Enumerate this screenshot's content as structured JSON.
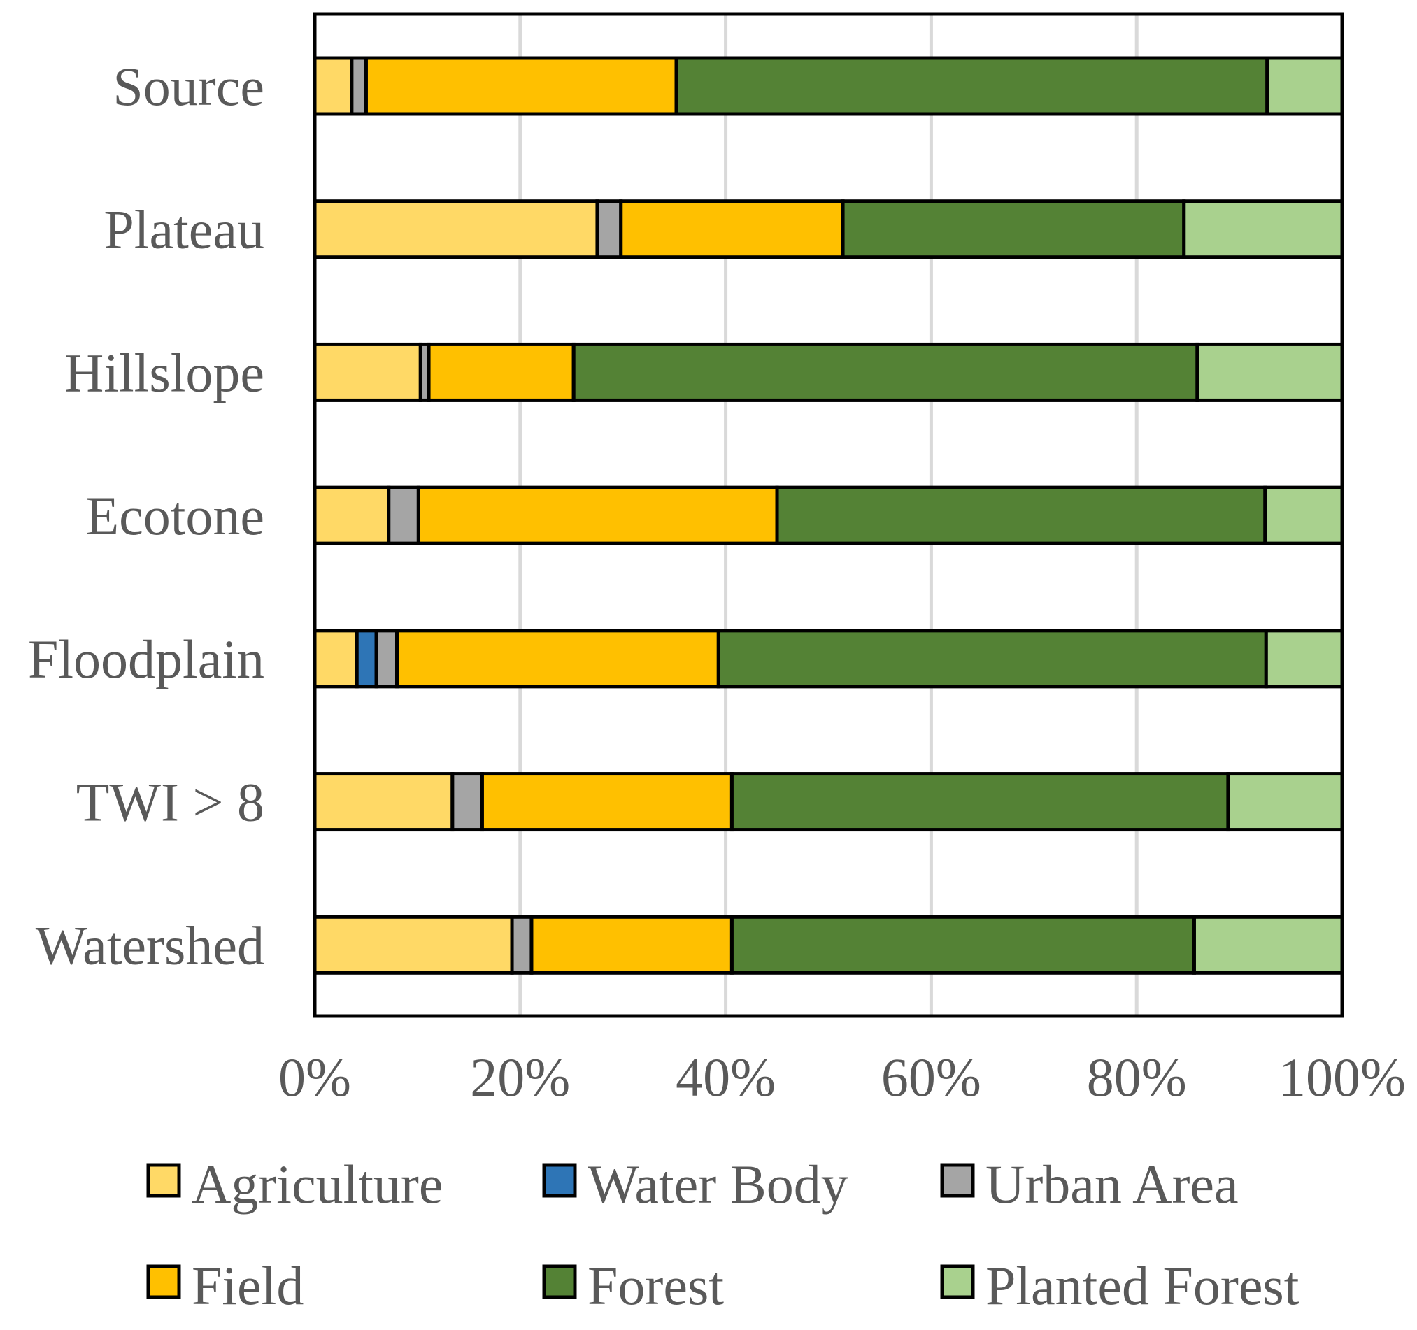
{
  "chart_data": {
    "type": "bar",
    "orientation": "horizontal",
    "stacked": "percent",
    "categories": [
      "Source",
      "Plateau",
      "Hillslope",
      "Ecotone",
      "Floodplain",
      "TWI > 8",
      "Watershed"
    ],
    "series": [
      {
        "name": "Agriculture",
        "color": "#FFD966",
        "values": [
          3.6,
          27.5,
          10.3,
          7.2,
          4.1,
          13.4,
          19.2
        ]
      },
      {
        "name": "Water Body",
        "color": "#2E75B6",
        "values": [
          0.0,
          0.0,
          0.0,
          0.0,
          1.9,
          0.0,
          0.0
        ]
      },
      {
        "name": "Urban Area",
        "color": "#A5A5A5",
        "values": [
          1.4,
          2.3,
          0.8,
          2.9,
          2.0,
          2.9,
          1.9
        ]
      },
      {
        "name": "Field",
        "color": "#FFC000",
        "values": [
          30.2,
          21.6,
          14.1,
          34.9,
          31.3,
          24.3,
          19.5
        ]
      },
      {
        "name": "Forest",
        "color": "#548235",
        "values": [
          57.5,
          33.2,
          60.7,
          47.5,
          53.3,
          48.3,
          45.0
        ]
      },
      {
        "name": "Planted Forest",
        "color": "#A9D18E",
        "values": [
          7.3,
          15.4,
          14.1,
          7.5,
          7.4,
          11.1,
          14.4
        ]
      }
    ],
    "xlim": [
      0,
      100
    ],
    "x_ticks": [
      "0%",
      "20%",
      "40%",
      "60%",
      "80%",
      "100%"
    ],
    "grid": "vertical",
    "legend_position": "bottom",
    "title": "",
    "xlabel": "",
    "ylabel": ""
  }
}
